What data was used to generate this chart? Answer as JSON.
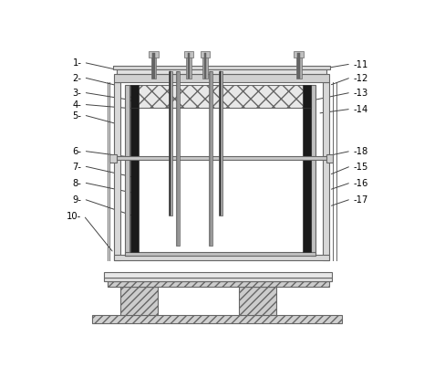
{
  "bg_color": "#ffffff",
  "line_color": "#666666",
  "dark_color": "#1a1a1a",
  "labels_left": {
    "1": [
      0.055,
      0.945,
      0.3,
      0.895
    ],
    "2": [
      0.055,
      0.895,
      0.195,
      0.868
    ],
    "3": [
      0.055,
      0.845,
      0.235,
      0.82
    ],
    "4": [
      0.055,
      0.805,
      0.255,
      0.79
    ],
    "5": [
      0.055,
      0.77,
      0.195,
      0.74
    ],
    "6": [
      0.055,
      0.65,
      0.245,
      0.628
    ],
    "7": [
      0.055,
      0.6,
      0.255,
      0.56
    ],
    "8": [
      0.055,
      0.545,
      0.245,
      0.51
    ],
    "9": [
      0.055,
      0.49,
      0.255,
      0.43
    ],
    "10": [
      0.055,
      0.435,
      0.185,
      0.31
    ]
  },
  "labels_right": {
    "11": [
      0.945,
      0.94,
      0.745,
      0.91
    ],
    "12": [
      0.945,
      0.895,
      0.84,
      0.868
    ],
    "13": [
      0.945,
      0.845,
      0.795,
      0.82
    ],
    "14": [
      0.945,
      0.79,
      0.805,
      0.775
    ],
    "18": [
      0.945,
      0.65,
      0.82,
      0.63
    ],
    "15": [
      0.945,
      0.6,
      0.84,
      0.57
    ],
    "16": [
      0.945,
      0.545,
      0.84,
      0.52
    ],
    "17": [
      0.945,
      0.49,
      0.84,
      0.465
    ]
  }
}
